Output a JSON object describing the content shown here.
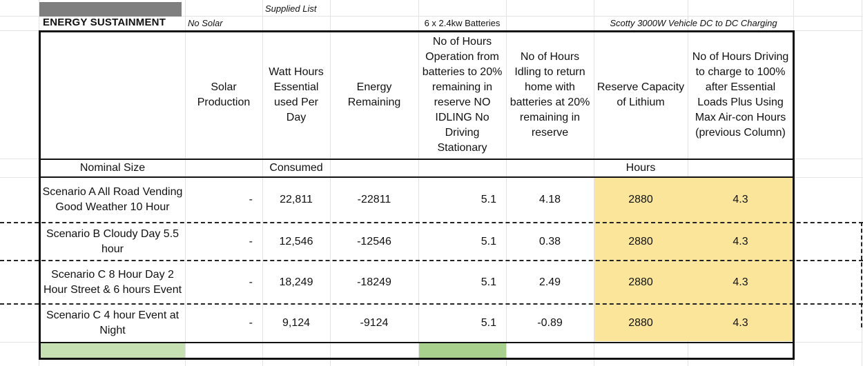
{
  "sheet": {
    "title": "ENERGY SUSTAINMENT",
    "top_notes": {
      "no_solar": "No Solar",
      "supplied_list": "Supplied List",
      "batteries": "6 x 2.4kw Batteries",
      "charger": "Scotty 3000W Vehicle DC to DC Charging"
    },
    "headers": [
      "",
      "Solar Production",
      "Watt Hours Essential used Per Day",
      "Energy Remaining",
      "No of Hours Operation from batteries to 20% remaining in reserve NO IDLING No Driving Stationary",
      "No of Hours Idling to return home with batteries at 20% remaining in reserve",
      "Reserve Capacity of Lithium",
      "No of Hours Driving to charge to 100% after  Essential Loads Plus Using Max Air-con Hours (previous Column)"
    ],
    "subheader": {
      "nominal_size": "Nominal Size",
      "consumed": "Consumed",
      "hours": "Hours"
    },
    "rows": [
      {
        "label": "Scenario A All Road Vending Good Weather 10 Hour",
        "solar": "-",
        "watt_hours": "22,811",
        "remaining": "-22811",
        "hours_op": "5.1",
        "hours_idle": "4.18",
        "reserve": "2880",
        "hours_drive": "4.3"
      },
      {
        "label": "Scenario B  Cloudy  Day 5.5 hour",
        "solar": "-",
        "watt_hours": "12,546",
        "remaining": "-12546",
        "hours_op": "5.1",
        "hours_idle": "0.38",
        "reserve": "2880",
        "hours_drive": "4.3"
      },
      {
        "label": "Scenario C 8 Hour Day 2 Hour Street & 6 hours Event",
        "solar": "-",
        "watt_hours": "18,249",
        "remaining": "-18249",
        "hours_op": "5.1",
        "hours_idle": "2.49",
        "reserve": "2880",
        "hours_drive": "4.3"
      },
      {
        "label": "Scenario C 4 hour Event at Night",
        "solar": "-",
        "watt_hours": "9,124",
        "remaining": "-9124",
        "hours_op": "5.1",
        "hours_idle": "-0.89",
        "reserve": "2880",
        "hours_drive": "4.3"
      }
    ],
    "colors": {
      "highlight_yellow": "#fbe59b",
      "green_light": "#c6e0b4",
      "green_mid": "#a9d18e",
      "gray_block": "#7f7f7f"
    }
  }
}
